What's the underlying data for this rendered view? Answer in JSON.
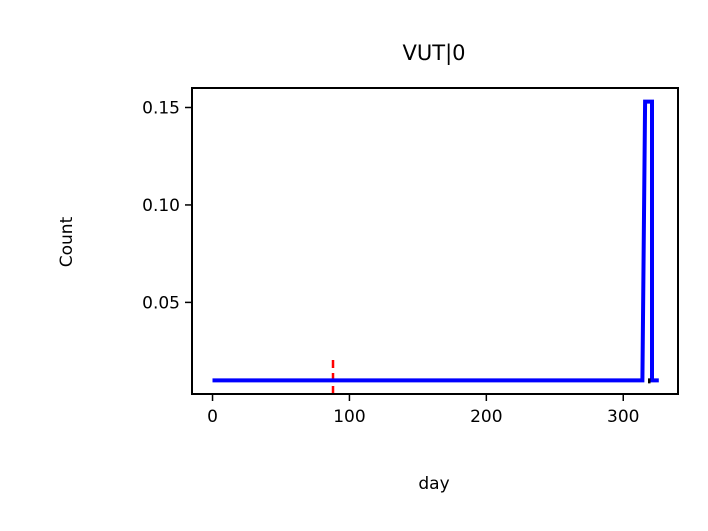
{
  "chart_data": {
    "type": "line",
    "title": "VUT|0",
    "xlabel": "day",
    "ylabel": "Count",
    "xlim": [
      -15,
      340
    ],
    "ylim": [
      0.003,
      0.16
    ],
    "xticks": [
      0,
      100,
      200,
      300
    ],
    "xtick_labels": [
      "0",
      "100",
      "200",
      "300"
    ],
    "yticks": [
      0.05,
      0.1,
      0.15
    ],
    "ytick_labels": [
      "0.05",
      "0.10",
      "0.15"
    ],
    "grid": false,
    "series": [
      {
        "color": "#0000ff",
        "style": "step",
        "x": [
          0,
          314,
          314,
          316,
          316,
          321,
          321,
          326
        ],
        "y": [
          0.01,
          0.01,
          0.01,
          0.153,
          0.153,
          0.153,
          0.01,
          0.01
        ]
      }
    ],
    "annotations": [
      {
        "type": "vline",
        "x": 88,
        "y_range": [
          0.003,
          0.023
        ],
        "color": "#ff0000",
        "style": "dashed"
      }
    ],
    "marker_tick": {
      "x": 319,
      "y": 0.01,
      "color": "#000000"
    }
  }
}
